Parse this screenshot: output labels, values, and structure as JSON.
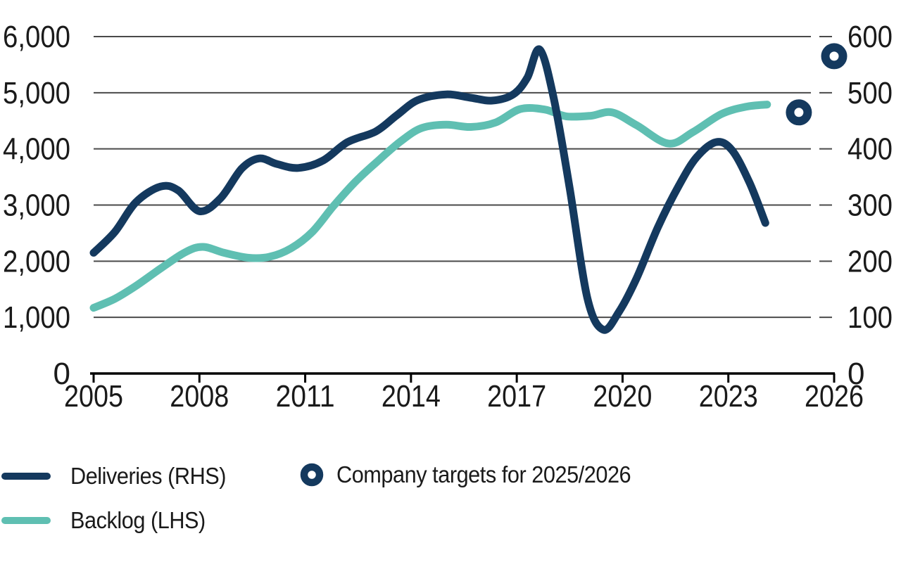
{
  "chart_data": {
    "type": "line",
    "title": "",
    "x_axis": {
      "ticks": [
        "2005",
        "2008",
        "2011",
        "2014",
        "2017",
        "2020",
        "2023",
        "2026"
      ],
      "range": [
        2005,
        2026
      ]
    },
    "left_axis": {
      "ticks": [
        "0",
        "1,000",
        "2,000",
        "3,000",
        "4,000",
        "5,000",
        "6,000"
      ],
      "range": [
        0,
        6000
      ],
      "grid": true
    },
    "right_axis": {
      "ticks": [
        "0",
        "100",
        "200",
        "300",
        "400",
        "500",
        "600"
      ],
      "range": [
        0,
        600
      ]
    },
    "colors": {
      "navy": "#14395e",
      "teal": "#5fbfb2",
      "grid": "#4a4a4a",
      "axis": "#000000",
      "text": "#1a1a1a"
    },
    "series": [
      {
        "name": "Deliveries (RHS)",
        "axis": "right",
        "style": "line",
        "color_key": "navy",
        "points": [
          [
            2005.0,
            215
          ],
          [
            2005.6,
            252
          ],
          [
            2006.2,
            305
          ],
          [
            2006.9,
            333
          ],
          [
            2007.4,
            326
          ],
          [
            2008.0,
            289
          ],
          [
            2008.6,
            312
          ],
          [
            2009.2,
            365
          ],
          [
            2009.7,
            383
          ],
          [
            2010.2,
            373
          ],
          [
            2010.8,
            366
          ],
          [
            2011.5,
            379
          ],
          [
            2012.2,
            412
          ],
          [
            2013.0,
            431
          ],
          [
            2013.6,
            460
          ],
          [
            2014.2,
            487
          ],
          [
            2015.0,
            497
          ],
          [
            2015.7,
            491
          ],
          [
            2016.3,
            486
          ],
          [
            2016.9,
            497
          ],
          [
            2017.3,
            527
          ],
          [
            2017.65,
            577
          ],
          [
            2018.05,
            490
          ],
          [
            2018.5,
            330
          ],
          [
            2019.0,
            135
          ],
          [
            2019.45,
            78
          ],
          [
            2019.9,
            110
          ],
          [
            2020.4,
            170
          ],
          [
            2021.0,
            260
          ],
          [
            2021.6,
            335
          ],
          [
            2022.1,
            385
          ],
          [
            2022.65,
            412
          ],
          [
            2023.1,
            398
          ],
          [
            2023.6,
            340
          ],
          [
            2024.05,
            268
          ]
        ]
      },
      {
        "name": "Backlog (LHS)",
        "axis": "left",
        "style": "line",
        "color_key": "teal",
        "points": [
          [
            2005.0,
            1170
          ],
          [
            2005.6,
            1330
          ],
          [
            2006.2,
            1560
          ],
          [
            2006.9,
            1870
          ],
          [
            2007.6,
            2160
          ],
          [
            2008.1,
            2255
          ],
          [
            2008.7,
            2150
          ],
          [
            2009.4,
            2060
          ],
          [
            2010.0,
            2080
          ],
          [
            2010.6,
            2230
          ],
          [
            2011.2,
            2520
          ],
          [
            2011.8,
            2980
          ],
          [
            2012.4,
            3400
          ],
          [
            2013.0,
            3750
          ],
          [
            2013.7,
            4130
          ],
          [
            2014.3,
            4370
          ],
          [
            2015.0,
            4430
          ],
          [
            2015.7,
            4390
          ],
          [
            2016.4,
            4470
          ],
          [
            2017.1,
            4710
          ],
          [
            2017.8,
            4700
          ],
          [
            2018.4,
            4580
          ],
          [
            2019.1,
            4590
          ],
          [
            2019.7,
            4650
          ],
          [
            2020.4,
            4420
          ],
          [
            2021.3,
            4095
          ],
          [
            2022.0,
            4300
          ],
          [
            2022.8,
            4620
          ],
          [
            2023.5,
            4750
          ],
          [
            2024.1,
            4790
          ]
        ]
      },
      {
        "name": "Company targets for 2025/2026",
        "axis": "right",
        "style": "circle-marker",
        "color_key": "navy",
        "points": [
          [
            2025,
            465
          ],
          [
            2026,
            565
          ]
        ]
      }
    ],
    "legend": [
      {
        "swatch": "line-navy",
        "label": "Deliveries (RHS)"
      },
      {
        "swatch": "line-teal",
        "label": "Backlog (LHS)"
      },
      {
        "swatch": "circle-navy",
        "label": "Company targets for 2025/2026"
      }
    ]
  }
}
